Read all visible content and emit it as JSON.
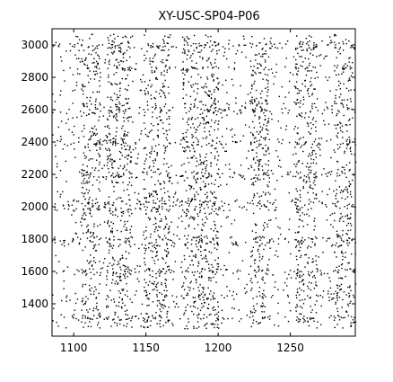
{
  "chart_data": {
    "type": "scatter",
    "title": "XY-USC-SP04-P06",
    "xlabel": "",
    "ylabel": "",
    "xlim": [
      1085,
      1295
    ],
    "ylim": [
      1200,
      3100
    ],
    "xticks": [
      1100,
      1150,
      1200,
      1250
    ],
    "yticks": [
      1400,
      1600,
      1800,
      2000,
      2200,
      2400,
      2600,
      2800,
      3000
    ],
    "xtick_labels": [
      "1100",
      "1150",
      "1200",
      "1250"
    ],
    "ytick_labels": [
      "1400",
      "1600",
      "1800",
      "2000",
      "2200",
      "2400",
      "2600",
      "2800",
      "3000"
    ],
    "grid": false,
    "legend": "none",
    "marker_color": "#000000",
    "dense_vertical_bands_x": [
      [
        1105,
        1118
      ],
      [
        1122,
        1140
      ],
      [
        1148,
        1166
      ],
      [
        1175,
        1200
      ],
      [
        1222,
        1235
      ],
      [
        1253,
        1268
      ],
      [
        1280,
        1292
      ]
    ],
    "dense_horizontal_bands_y": [
      [
        1300,
        1330
      ],
      [
        1440,
        1460
      ],
      [
        1580,
        1620
      ],
      [
        1760,
        1820
      ],
      [
        1980,
        2040
      ],
      [
        2180,
        2220
      ],
      [
        2380,
        2420
      ],
      [
        2580,
        2620
      ],
      [
        2850,
        2870
      ],
      [
        2980,
        3020
      ]
    ]
  }
}
